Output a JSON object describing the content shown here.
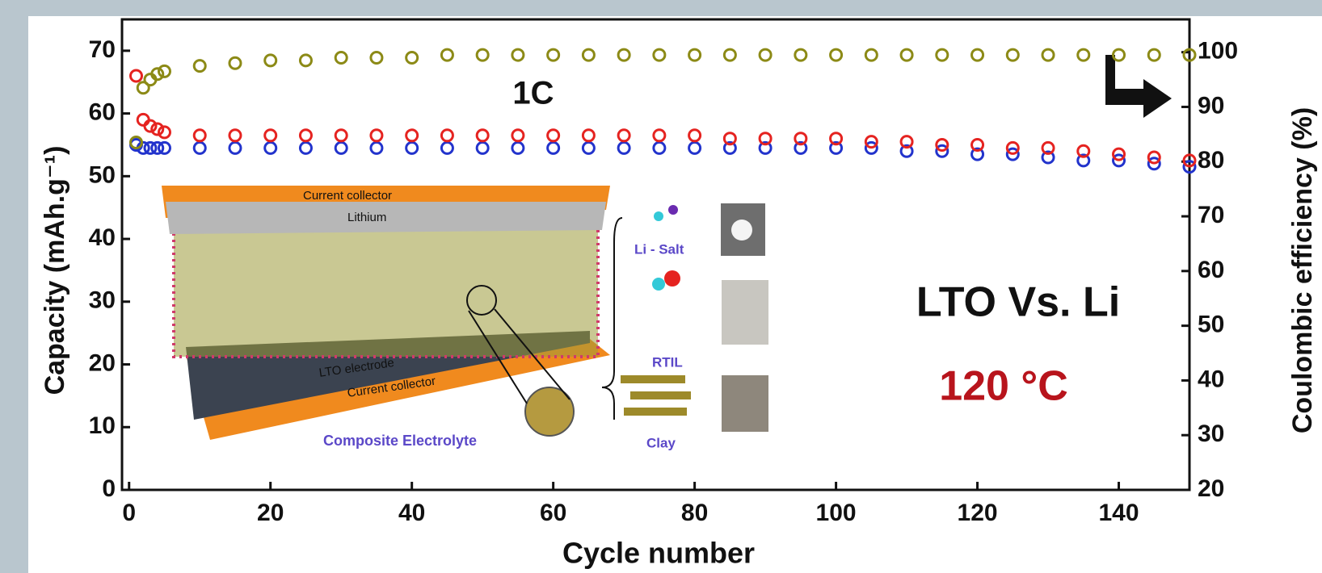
{
  "chart_data": {
    "type": "scatter",
    "x_label": "Cycle number",
    "y_label": "Capacity (mAh.g⁻¹)",
    "y2_label": "Coulombic efficiency (%)",
    "annotations": [
      "1C",
      "LTO Vs. Li",
      "120 °C"
    ],
    "inset_labels": [
      "Current collector",
      "Lithium",
      "LTO electrode",
      "Current collector",
      "Composite Electrolyte",
      "Li - Salt",
      "RTIL",
      "Clay"
    ],
    "xlim": [
      -1,
      150
    ],
    "xticks": [
      0,
      20,
      40,
      60,
      80,
      100,
      120,
      140
    ],
    "ylim": [
      0,
      75
    ],
    "yticks": [
      0,
      10,
      20,
      30,
      40,
      50,
      60,
      70
    ],
    "y2lim": [
      20,
      106
    ],
    "y2ticks": [
      20,
      30,
      40,
      50,
      60,
      70,
      80,
      90,
      100
    ],
    "x": [
      1,
      2,
      3,
      4,
      5,
      10,
      15,
      20,
      25,
      30,
      35,
      40,
      45,
      50,
      55,
      60,
      65,
      70,
      75,
      80,
      85,
      90,
      95,
      100,
      105,
      110,
      115,
      120,
      125,
      130,
      135,
      140,
      145,
      150
    ],
    "series": [
      {
        "color": "#2233cc",
        "values": [
          55,
          54.5,
          54.5,
          54.5,
          54.5,
          54.5,
          54.5,
          54.5,
          54.5,
          54.5,
          54.5,
          54.5,
          54.5,
          54.5,
          54.5,
          54.5,
          54.5,
          54.5,
          54.5,
          54.5,
          54.5,
          54.5,
          54.5,
          54.5,
          54.5,
          54,
          54,
          53.5,
          53.5,
          53,
          52.5,
          52.5,
          52,
          51.5
        ]
      },
      {
        "color": "#e52320",
        "values": [
          66,
          59,
          58,
          57.5,
          57,
          56.5,
          56.5,
          56.5,
          56.5,
          56.5,
          56.5,
          56.5,
          56.5,
          56.5,
          56.5,
          56.5,
          56.5,
          56.5,
          56.5,
          56.5,
          56,
          56,
          56,
          56,
          55.5,
          55.5,
          55,
          55,
          54.5,
          54.5,
          54,
          53.5,
          53,
          52.5
        ]
      },
      {
        "color": "#8c8a16",
        "axis": "y2",
        "values": [
          83.5,
          93.5,
          95,
          96,
          96.5,
          97.5,
          98,
          98.5,
          98.5,
          99,
          99,
          99,
          99.5,
          99.5,
          99.5,
          99.5,
          99.5,
          99.5,
          99.5,
          99.5,
          99.5,
          99.5,
          99.5,
          99.5,
          99.5,
          99.5,
          99.5,
          99.5,
          99.5,
          99.5,
          99.5,
          99.5,
          99.5,
          99.5
        ]
      }
    ]
  }
}
